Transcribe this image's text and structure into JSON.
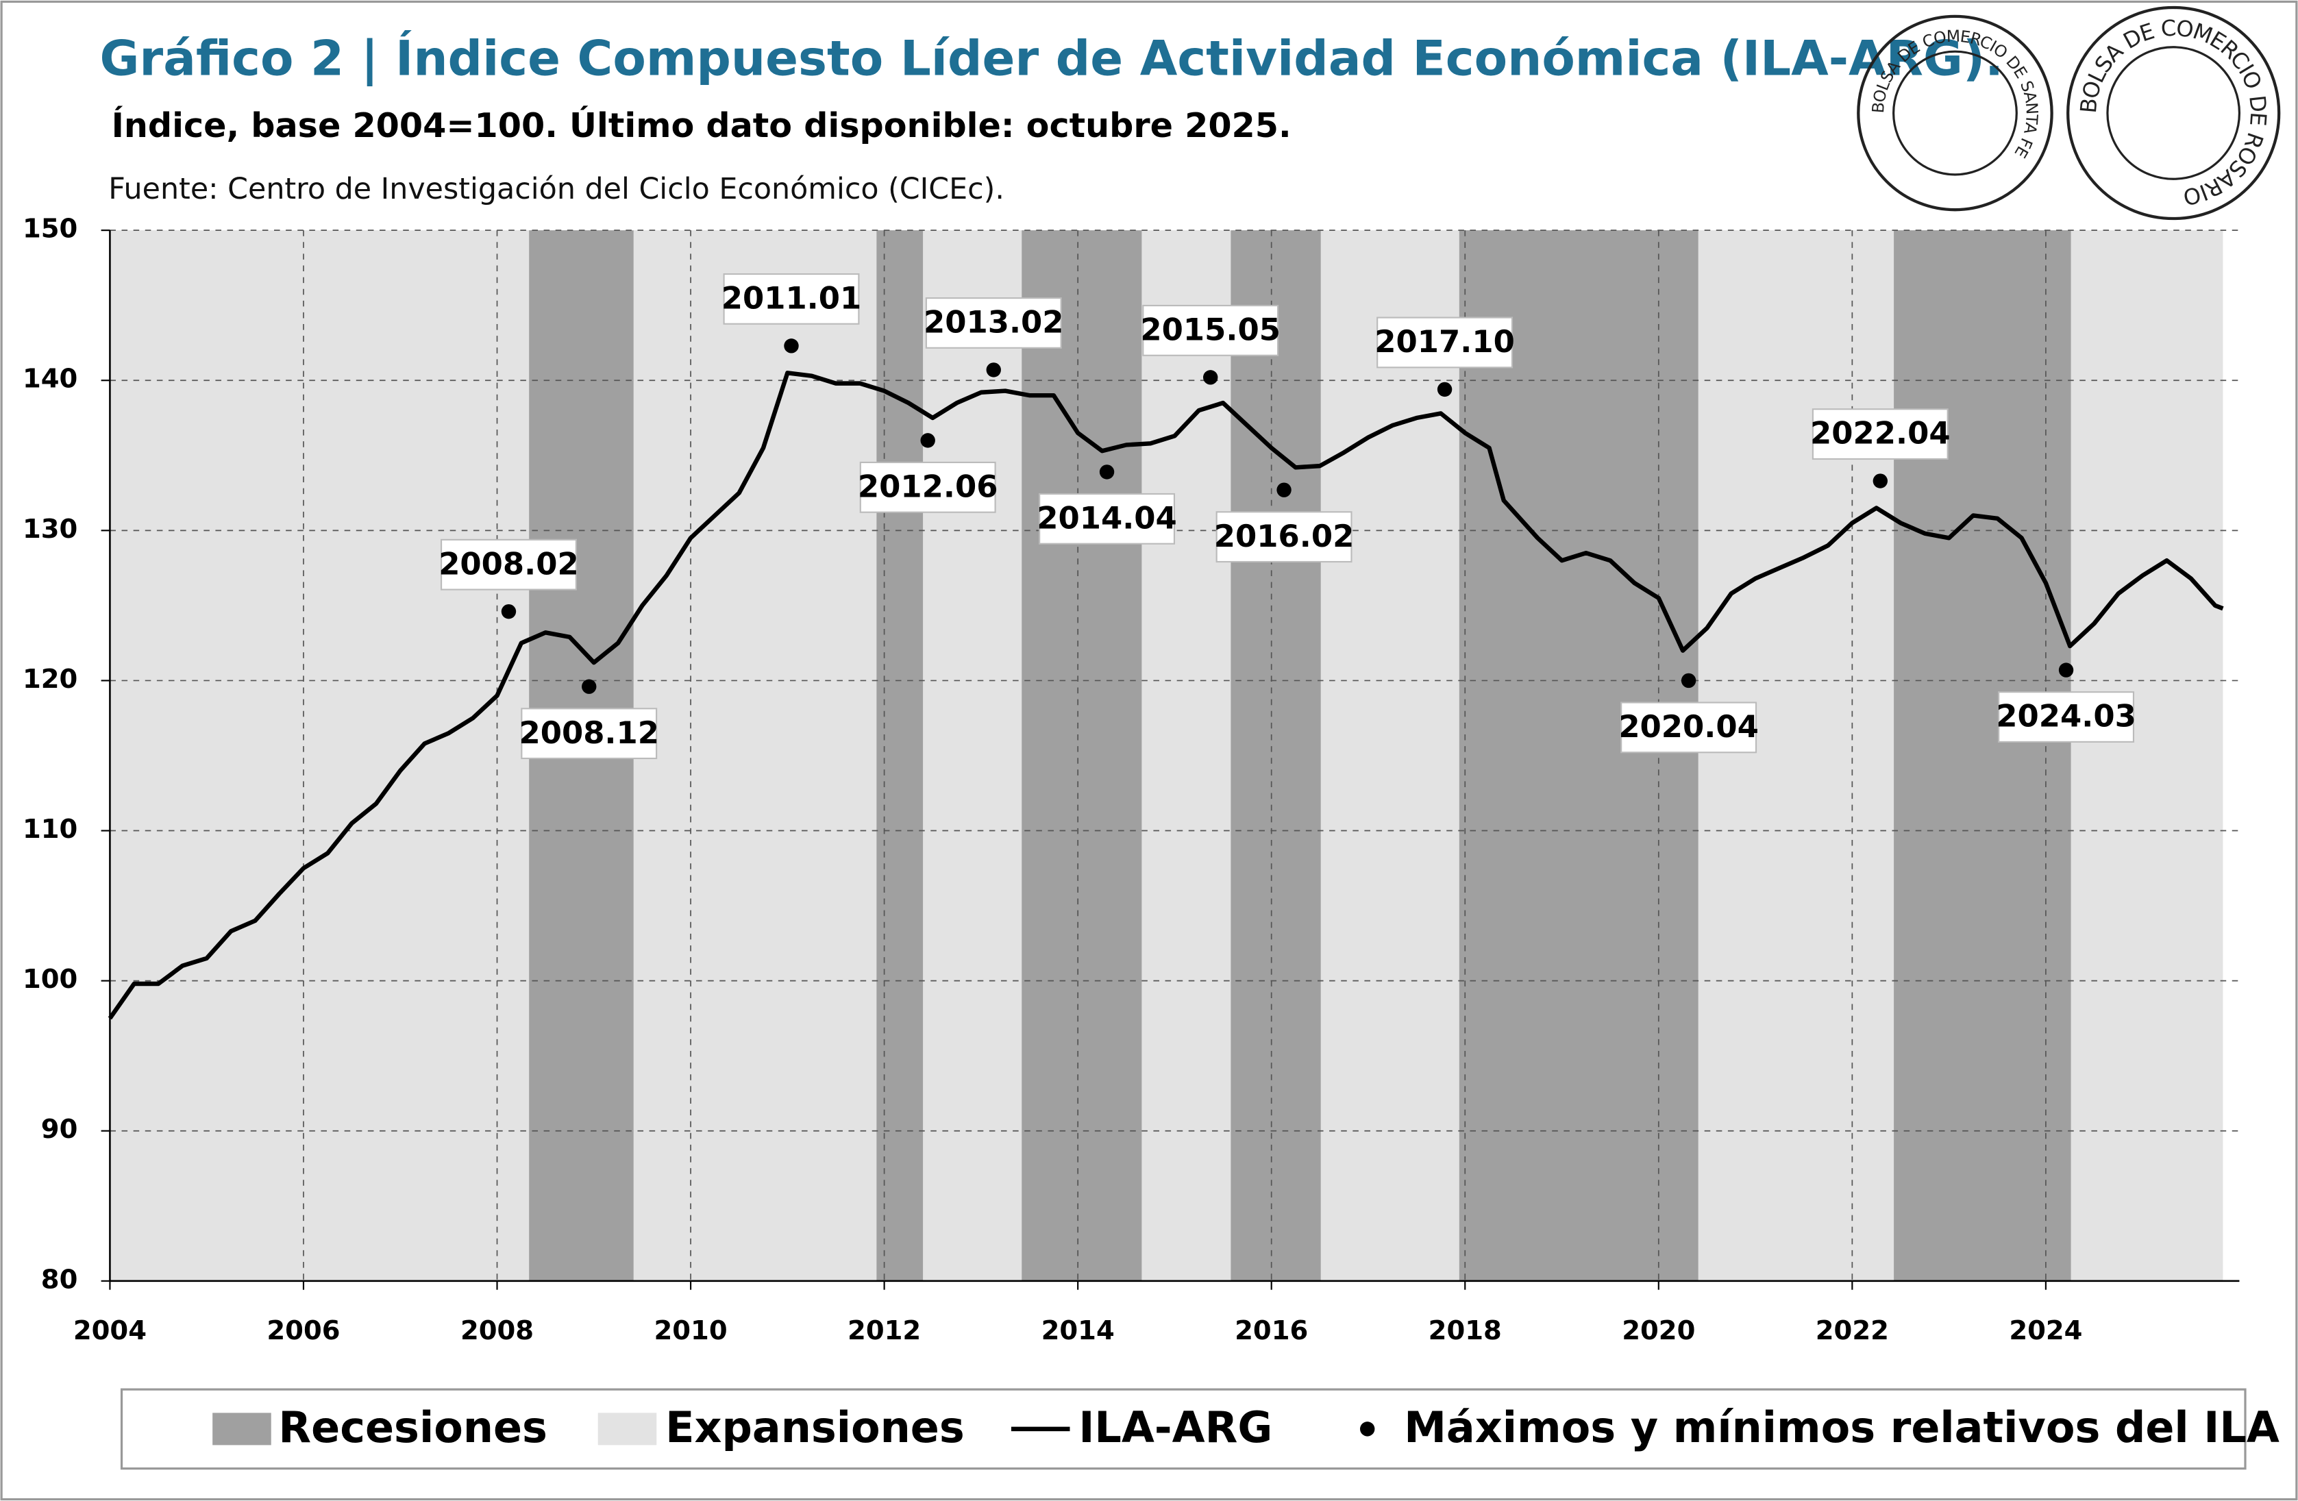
{
  "chart_data": {
    "type": "line",
    "title": "Gráfico 2 | Índice Compuesto Líder de Actividad Económica (ILA-ARG).",
    "subtitle": "Índice, base 2004=100. Último dato disponible: octubre 2025.",
    "source": "Fuente: Centro de Investigación del Ciclo Económico (CICEc).",
    "logos": [
      "BOLSA DE COMERCIO DE SANTA FE",
      "BOLSA DE COMERCIO DE ROSARIO"
    ],
    "xlim": [
      2004,
      2026
    ],
    "xticks": [
      2004,
      2006,
      2008,
      2010,
      2012,
      2014,
      2016,
      2018,
      2020,
      2022,
      2024
    ],
    "ylim": [
      80,
      150
    ],
    "yticks": [
      80,
      90,
      100,
      110,
      120,
      130,
      140,
      150
    ],
    "grid": true,
    "recessions": {
      "name": "Recesiones",
      "color": "#a0a0a0",
      "ranges": [
        [
          2008.33,
          2009.41
        ],
        [
          2011.92,
          2012.4
        ],
        [
          2013.42,
          2014.66
        ],
        [
          2015.58,
          2016.51
        ],
        [
          2017.94,
          2020.41
        ],
        [
          2022.43,
          2024.26
        ]
      ]
    },
    "expansions": {
      "name": "Expansiones",
      "color": "#e3e3e3",
      "ranges": [
        [
          2004,
          2008.33
        ],
        [
          2009.41,
          2011.92
        ],
        [
          2012.4,
          2013.42
        ],
        [
          2014.66,
          2015.58
        ],
        [
          2016.51,
          2017.94
        ],
        [
          2020.41,
          2022.43
        ],
        [
          2024.26,
          2025.83
        ]
      ]
    },
    "series": [
      {
        "name": "ILA-ARG",
        "color": "#000000",
        "x": [
          2004,
          2004.25,
          2004.5,
          2004.75,
          2005,
          2005.25,
          2005.5,
          2005.75,
          2006,
          2006.25,
          2006.5,
          2006.75,
          2007,
          2007.25,
          2007.5,
          2007.75,
          2008,
          2008.25,
          2008.5,
          2008.75,
          2009,
          2009.25,
          2009.5,
          2009.75,
          2010,
          2010.25,
          2010.5,
          2010.75,
          2011,
          2011.25,
          2011.5,
          2011.75,
          2012,
          2012.25,
          2012.5,
          2012.75,
          2013,
          2013.25,
          2013.5,
          2013.75,
          2014,
          2014.25,
          2014.5,
          2014.75,
          2015,
          2015.25,
          2015.5,
          2015.75,
          2016,
          2016.25,
          2016.5,
          2016.75,
          2017,
          2017.25,
          2017.5,
          2017.75,
          2018,
          2018.25,
          2018.4,
          2018.75,
          2019,
          2019.25,
          2019.5,
          2019.75,
          2020,
          2020.25,
          2020.5,
          2020.75,
          2021,
          2021.25,
          2021.5,
          2021.75,
          2022,
          2022.25,
          2022.5,
          2022.75,
          2023,
          2023.25,
          2023.5,
          2023.75,
          2024,
          2024.25,
          2024.5,
          2024.75,
          2025,
          2025.25,
          2025.5,
          2025.75,
          2025.83
        ],
        "values": [
          97.5,
          99.8,
          99.8,
          101,
          101.5,
          103.3,
          104,
          105.8,
          107.5,
          108.5,
          110.5,
          111.8,
          114,
          115.8,
          116.5,
          117.5,
          119,
          122.5,
          123.2,
          122.9,
          121.2,
          122.5,
          125,
          127,
          129.5,
          131,
          132.5,
          135.5,
          140.5,
          140.3,
          139.8,
          139.8,
          139.3,
          138.5,
          137.5,
          138.5,
          139.2,
          139.3,
          139,
          139,
          136.5,
          135.3,
          135.7,
          135.8,
          136.3,
          138,
          138.5,
          137,
          135.5,
          134.2,
          134.3,
          135.2,
          136.2,
          137,
          137.5,
          137.8,
          136.5,
          135.5,
          132,
          129.5,
          128,
          128.5,
          128,
          126.5,
          125.5,
          122,
          123.5,
          125.8,
          126.8,
          127.5,
          128.2,
          129,
          130.5,
          131.5,
          130.5,
          129.8,
          129.5,
          131,
          130.8,
          129.5,
          126.5,
          122.3,
          123.8,
          125.8,
          127,
          128,
          126.8,
          125,
          124.8
        ]
      }
    ],
    "markers": {
      "name": "Máximos y mínimos relativos del ILA",
      "color": "#000000",
      "labels": [
        "2008.02",
        "2008.12",
        "2011.01",
        "2012.06",
        "2013.02",
        "2014.04",
        "2015.05",
        "2016.02",
        "2017.10",
        "2020.04",
        "2022.04",
        "2024.03"
      ],
      "x": [
        2008.12,
        2008.95,
        2011.04,
        2012.45,
        2013.13,
        2014.3,
        2015.37,
        2016.13,
        2017.79,
        2020.31,
        2022.29,
        2024.21
      ],
      "values": [
        124.6,
        119.6,
        142.3,
        136.0,
        140.7,
        133.9,
        140.2,
        132.7,
        139.4,
        120.0,
        133.3,
        120.7
      ]
    }
  }
}
